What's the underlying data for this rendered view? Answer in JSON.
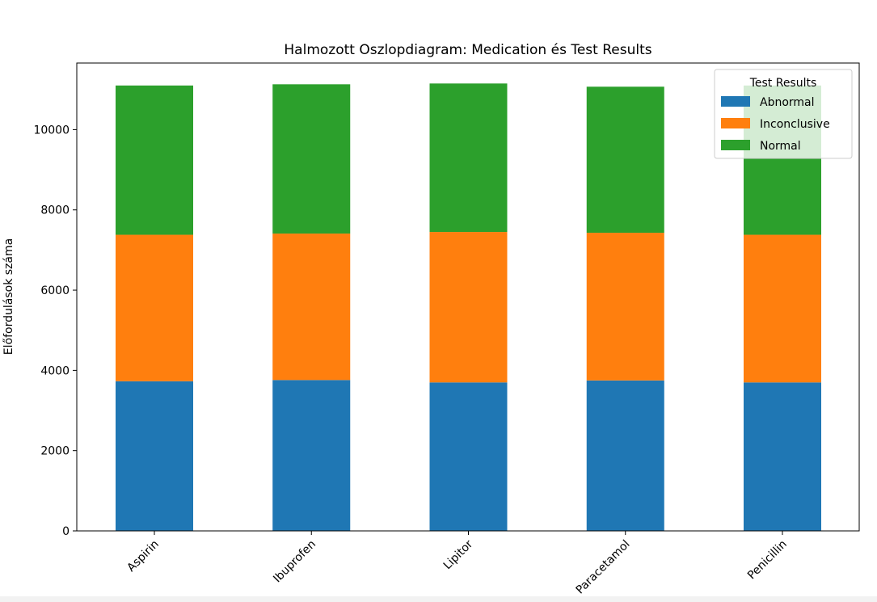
{
  "chart_data": {
    "type": "bar",
    "stacked": true,
    "title": "Halmozott Oszlopdiagram: Medication és Test Results",
    "xlabel": "",
    "ylabel": "Előfordulások száma",
    "categories": [
      "Aspirin",
      "Ibuprofen",
      "Lipitor",
      "Paracetamol",
      "Penicillin"
    ],
    "series": [
      {
        "name": "Abnormal",
        "color": "#1f77b4",
        "values": [
          3730,
          3760,
          3700,
          3750,
          3700
        ]
      },
      {
        "name": "Inconclusive",
        "color": "#ff7f0e",
        "values": [
          3650,
          3650,
          3750,
          3680,
          3680
        ]
      },
      {
        "name": "Normal",
        "color": "#2ca02c",
        "values": [
          3720,
          3720,
          3700,
          3640,
          3720
        ]
      }
    ],
    "ylim": [
      0,
      11660
    ],
    "yticks": [
      0,
      2000,
      4000,
      6000,
      8000,
      10000
    ],
    "legend": {
      "title": "Test Results",
      "position": "upper right"
    },
    "grid": false
  }
}
